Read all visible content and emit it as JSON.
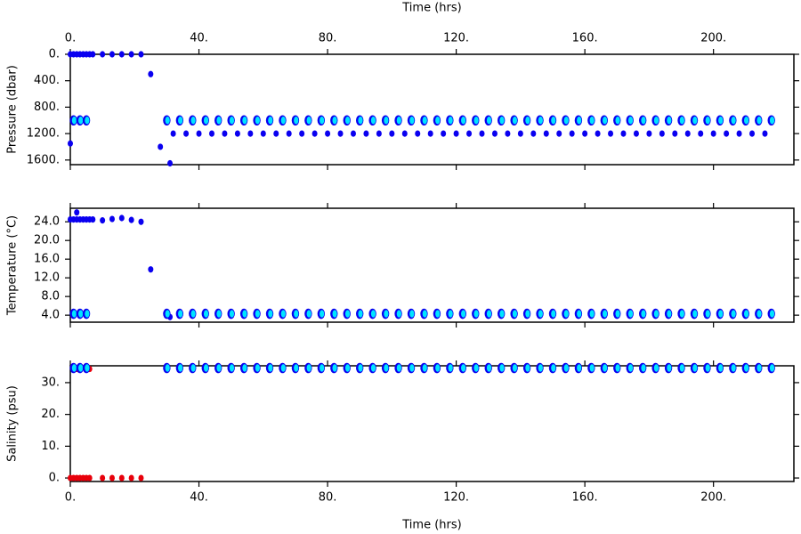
{
  "chart_data": [
    {
      "type": "scatter",
      "xlabel": "Time (hrs)",
      "ylabel": "Pressure (dbar)",
      "x_axis_labels": "top",
      "xlim": [
        0,
        225
      ],
      "ylim": [
        1670,
        0
      ],
      "xticks": [
        {
          "value": 0,
          "label": "0."
        },
        {
          "value": 40,
          "label": "40."
        },
        {
          "value": 80,
          "label": "80."
        },
        {
          "value": 120,
          "label": "120."
        },
        {
          "value": 160,
          "label": "160."
        },
        {
          "value": 200,
          "label": "200."
        }
      ],
      "yticks": [
        {
          "value": 0,
          "label": "0."
        },
        {
          "value": 400,
          "label": "400."
        },
        {
          "value": 800,
          "label": "800."
        },
        {
          "value": 1200,
          "label": "1200."
        },
        {
          "value": 1600,
          "label": "1600."
        }
      ],
      "series": [
        {
          "color": "#0a00f0",
          "x": [
            0,
            1,
            2,
            3,
            4,
            5,
            6,
            7,
            10,
            13,
            16,
            19,
            22,
            25,
            28,
            31,
            0
          ],
          "values": [
            0,
            0,
            0,
            0,
            0,
            0,
            0,
            0,
            0,
            0,
            0,
            0,
            0,
            300,
            1400,
            1650,
            1350
          ]
        },
        {
          "color": "#0a00f0",
          "x": [
            32,
            36,
            40,
            44,
            48,
            52,
            56,
            60,
            64,
            68,
            72,
            76,
            80,
            84,
            88,
            92,
            96,
            100,
            104,
            108,
            112,
            116,
            120,
            124,
            128,
            132,
            136,
            140,
            144,
            148,
            152,
            156,
            160,
            164,
            168,
            172,
            176,
            180,
            184,
            188,
            192,
            196,
            200,
            204,
            208,
            212,
            216
          ],
          "values": [
            1200,
            1200,
            1200,
            1200,
            1200,
            1200,
            1200,
            1200,
            1200,
            1200,
            1200,
            1200,
            1200,
            1200,
            1200,
            1200,
            1200,
            1200,
            1200,
            1200,
            1200,
            1200,
            1200,
            1200,
            1200,
            1200,
            1200,
            1200,
            1200,
            1200,
            1200,
            1200,
            1200,
            1200,
            1200,
            1200,
            1200,
            1200,
            1200,
            1200,
            1200,
            1200,
            1200,
            1200,
            1200,
            1200,
            1200
          ]
        },
        {
          "color": "#00e5ff",
          "edge_color": "#0a00f0",
          "x": [
            1,
            3,
            5,
            30,
            34,
            38,
            42,
            46,
            50,
            54,
            58,
            62,
            66,
            70,
            74,
            78,
            82,
            86,
            90,
            94,
            98,
            102,
            106,
            110,
            114,
            118,
            122,
            126,
            130,
            134,
            138,
            142,
            146,
            150,
            154,
            158,
            162,
            166,
            170,
            174,
            178,
            182,
            186,
            190,
            194,
            198,
            202,
            206,
            210,
            214,
            218
          ],
          "values": [
            1000,
            1000,
            1000,
            1000,
            1000,
            1000,
            1000,
            1000,
            1000,
            1000,
            1000,
            1000,
            1000,
            1000,
            1000,
            1000,
            1000,
            1000,
            1000,
            1000,
            1000,
            1000,
            1000,
            1000,
            1000,
            1000,
            1000,
            1000,
            1000,
            1000,
            1000,
            1000,
            1000,
            1000,
            1000,
            1000,
            1000,
            1000,
            1000,
            1000,
            1000,
            1000,
            1000,
            1000,
            1000,
            1000,
            1000,
            1000,
            1000,
            1000,
            1000
          ]
        }
      ]
    },
    {
      "type": "scatter",
      "ylabel": "Temperature (°C)",
      "x_axis_labels": "none",
      "xlim": [
        0,
        225
      ],
      "ylim": [
        2.5,
        26.9
      ],
      "xticks": [
        0,
        40,
        80,
        120,
        160,
        200
      ],
      "yticks": [
        {
          "value": 4,
          "label": "4.0"
        },
        {
          "value": 8,
          "label": "8.0"
        },
        {
          "value": 12,
          "label": "12.0"
        },
        {
          "value": 16,
          "label": "16.0"
        },
        {
          "value": 20,
          "label": "20.0"
        },
        {
          "value": 24,
          "label": "24.0"
        }
      ],
      "series": [
        {
          "color": "#0a00f0",
          "x": [
            0,
            1,
            2,
            3,
            4,
            5,
            6,
            7,
            10,
            13,
            16,
            19,
            22,
            25,
            2,
            31
          ],
          "values": [
            24.5,
            24.5,
            24.5,
            24.5,
            24.5,
            24.5,
            24.5,
            24.5,
            24.3,
            24.6,
            24.8,
            24.4,
            24,
            13.8,
            26,
            3.6
          ]
        },
        {
          "color": "#00e5ff",
          "edge_color": "#0a00f0",
          "x": [
            1,
            3,
            5,
            30,
            34,
            38,
            42,
            46,
            50,
            54,
            58,
            62,
            66,
            70,
            74,
            78,
            82,
            86,
            90,
            94,
            98,
            102,
            106,
            110,
            114,
            118,
            122,
            126,
            130,
            134,
            138,
            142,
            146,
            150,
            154,
            158,
            162,
            166,
            170,
            174,
            178,
            182,
            186,
            190,
            194,
            198,
            202,
            206,
            210,
            214,
            218
          ],
          "values": [
            4.3,
            4.3,
            4.3,
            4.3,
            4.3,
            4.3,
            4.3,
            4.3,
            4.3,
            4.3,
            4.3,
            4.3,
            4.3,
            4.3,
            4.3,
            4.3,
            4.3,
            4.3,
            4.3,
            4.3,
            4.3,
            4.3,
            4.3,
            4.3,
            4.3,
            4.3,
            4.3,
            4.3,
            4.3,
            4.3,
            4.3,
            4.3,
            4.3,
            4.3,
            4.3,
            4.3,
            4.3,
            4.3,
            4.3,
            4.3,
            4.3,
            4.3,
            4.3,
            4.3,
            4.3,
            4.3,
            4.3,
            4.3,
            4.3,
            4.3,
            4.3
          ]
        }
      ]
    },
    {
      "type": "scatter",
      "xlabel": "Time (hrs)",
      "ylabel": "Salinity (psu)",
      "x_axis_labels": "bottom",
      "xlim": [
        0,
        225
      ],
      "ylim": [
        -1.1,
        35.3
      ],
      "xticks": [
        {
          "value": 0,
          "label": "0."
        },
        {
          "value": 40,
          "label": "40."
        },
        {
          "value": 80,
          "label": "80."
        },
        {
          "value": 120,
          "label": "120."
        },
        {
          "value": 160,
          "label": "160."
        },
        {
          "value": 200,
          "label": "200."
        }
      ],
      "yticks": [
        {
          "value": 0,
          "label": "0."
        },
        {
          "value": 10,
          "label": "10."
        },
        {
          "value": 20,
          "label": "20."
        },
        {
          "value": 30,
          "label": "30."
        }
      ],
      "series": [
        {
          "color": "#e8000b",
          "x": [
            0,
            1,
            2,
            3,
            4,
            5,
            6,
            10,
            13,
            16,
            19,
            22,
            1,
            2,
            3,
            5,
            6
          ],
          "values": [
            0,
            0,
            0,
            0,
            0,
            0,
            0,
            0,
            0,
            0,
            0,
            0,
            34.3,
            34.3,
            34.3,
            34.3,
            34.3
          ]
        },
        {
          "color": "#00e5ff",
          "edge_color": "#0a00f0",
          "x": [
            1,
            3,
            5,
            30,
            34,
            38,
            42,
            46,
            50,
            54,
            58,
            62,
            66,
            70,
            74,
            78,
            82,
            86,
            90,
            94,
            98,
            102,
            106,
            110,
            114,
            118,
            122,
            126,
            130,
            134,
            138,
            142,
            146,
            150,
            154,
            158,
            162,
            166,
            170,
            174,
            178,
            182,
            186,
            190,
            194,
            198,
            202,
            206,
            210,
            214,
            218
          ],
          "values": [
            34.6,
            34.6,
            34.6,
            34.6,
            34.6,
            34.6,
            34.6,
            34.6,
            34.6,
            34.6,
            34.6,
            34.6,
            34.6,
            34.6,
            34.6,
            34.6,
            34.6,
            34.6,
            34.6,
            34.6,
            34.6,
            34.6,
            34.6,
            34.6,
            34.6,
            34.6,
            34.6,
            34.6,
            34.6,
            34.6,
            34.6,
            34.6,
            34.6,
            34.6,
            34.6,
            34.6,
            34.6,
            34.6,
            34.6,
            34.6,
            34.6,
            34.6,
            34.6,
            34.6,
            34.6,
            34.6,
            34.6,
            34.6,
            34.6,
            34.6,
            34.6
          ]
        }
      ]
    }
  ]
}
